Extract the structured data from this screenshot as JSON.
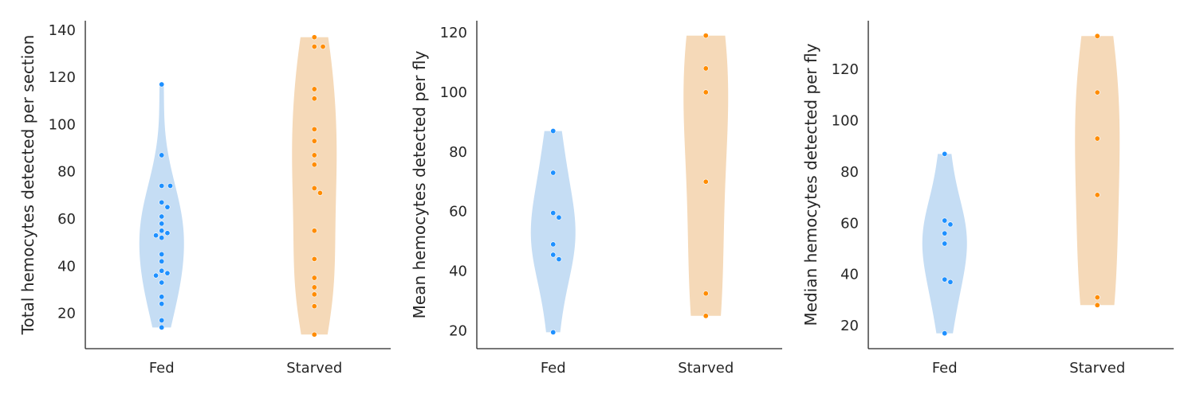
{
  "chart_data": [
    {
      "type": "violin",
      "ylabel": "Total hemocytes detected per section",
      "categories": [
        "Fed",
        "Starved"
      ],
      "ylim": [
        5,
        144
      ],
      "yticks": [
        20,
        40,
        60,
        80,
        100,
        120,
        140
      ],
      "groups": [
        {
          "name": "Fed",
          "color": "#1e90ff",
          "violin_color": "#c5ddf4",
          "values": [
            117,
            87,
            74,
            74,
            67,
            65,
            61,
            58,
            55,
            54,
            53,
            52,
            45,
            42,
            38,
            37,
            36,
            33,
            27,
            24,
            17,
            14
          ]
        },
        {
          "name": "Starved",
          "color": "#ff8c00",
          "violin_color": "#f5d9b8",
          "values": [
            137,
            133,
            133,
            115,
            111,
            98,
            93,
            87,
            83,
            73,
            71,
            55,
            43,
            35,
            31,
            28,
            23,
            11
          ]
        }
      ]
    },
    {
      "type": "violin",
      "ylabel": "Mean hemocytes detected per fly",
      "categories": [
        "Fed",
        "Starved"
      ],
      "ylim": [
        14,
        124
      ],
      "yticks": [
        20,
        40,
        60,
        80,
        100,
        120
      ],
      "groups": [
        {
          "name": "Fed",
          "color": "#1e90ff",
          "violin_color": "#c5ddf4",
          "values": [
            87,
            73,
            59.5,
            58,
            49,
            45.5,
            44,
            19.5
          ]
        },
        {
          "name": "Starved",
          "color": "#ff8c00",
          "violin_color": "#f5d9b8",
          "values": [
            119,
            108,
            100,
            70,
            32.5,
            25
          ]
        }
      ]
    },
    {
      "type": "violin",
      "ylabel": "Median hemocytes detected per fly",
      "categories": [
        "Fed",
        "Starved"
      ],
      "ylim": [
        11,
        139
      ],
      "yticks": [
        20,
        40,
        60,
        80,
        100,
        120
      ],
      "groups": [
        {
          "name": "Fed",
          "color": "#1e90ff",
          "violin_color": "#c5ddf4",
          "values": [
            87,
            61,
            59.5,
            56,
            52,
            38,
            37,
            17
          ]
        },
        {
          "name": "Starved",
          "color": "#ff8c00",
          "violin_color": "#f5d9b8",
          "values": [
            133,
            111,
            93,
            71,
            31,
            28
          ]
        }
      ]
    }
  ]
}
